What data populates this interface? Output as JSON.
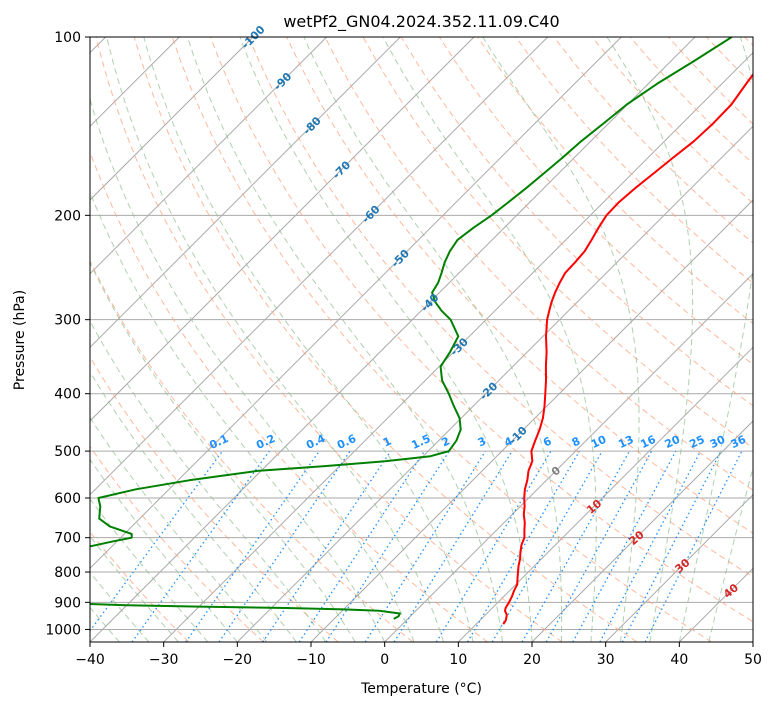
{
  "chart_data": {
    "type": "line",
    "title": "wetPf2_GN04.2024.352.11.09.C40",
    "xlabel": "Temperature (°C)",
    "ylabel": "Pressure (hPa)",
    "xlim": [
      -40,
      50
    ],
    "ylim": [
      1050,
      100
    ],
    "y_scale": "log",
    "grid": true,
    "x_ticks": [
      -40,
      -30,
      -20,
      -10,
      0,
      10,
      20,
      30,
      40,
      50
    ],
    "x_tick_labels": [
      "−40",
      "−30",
      "−20",
      "−10",
      "0",
      "10",
      "20",
      "30",
      "40",
      "50"
    ],
    "y_ticks": [
      100,
      200,
      300,
      400,
      500,
      600,
      700,
      800,
      900,
      1000
    ],
    "y_tick_labels": [
      "100",
      "200",
      "300",
      "400",
      "500",
      "600",
      "700",
      "800",
      "900",
      "1000"
    ],
    "series": [
      {
        "color": "#ff0000",
        "points": [
          [
            100,
            -28.3
          ],
          [
            110,
            -27.5
          ],
          [
            120,
            -26.7
          ],
          [
            130,
            -25.9
          ],
          [
            140,
            -25.8
          ],
          [
            150,
            -26.0
          ],
          [
            160,
            -26.6
          ],
          [
            170,
            -27.1
          ],
          [
            180,
            -27.6
          ],
          [
            190,
            -27.9
          ],
          [
            200,
            -27.8
          ],
          [
            210,
            -27.2
          ],
          [
            220,
            -26.5
          ],
          [
            230,
            -25.9
          ],
          [
            240,
            -25.7
          ],
          [
            250,
            -25.6
          ],
          [
            260,
            -25.0
          ],
          [
            270,
            -24.3
          ],
          [
            280,
            -23.5
          ],
          [
            290,
            -22.6
          ],
          [
            300,
            -21.7
          ],
          [
            320,
            -19.6
          ],
          [
            340,
            -17.4
          ],
          [
            360,
            -15.5
          ],
          [
            380,
            -13.6
          ],
          [
            400,
            -11.9
          ],
          [
            420,
            -10.3
          ],
          [
            440,
            -8.9
          ],
          [
            460,
            -7.8
          ],
          [
            480,
            -6.9
          ],
          [
            500,
            -6.0
          ],
          [
            520,
            -4.5
          ],
          [
            540,
            -3.7
          ],
          [
            560,
            -2.6
          ],
          [
            580,
            -1.7
          ],
          [
            600,
            -0.6
          ],
          [
            620,
            0.6
          ],
          [
            640,
            1.6
          ],
          [
            660,
            2.8
          ],
          [
            680,
            3.8
          ],
          [
            700,
            4.8
          ],
          [
            720,
            5.4
          ],
          [
            740,
            6.2
          ],
          [
            760,
            7.1
          ],
          [
            780,
            7.8
          ],
          [
            800,
            8.6
          ],
          [
            820,
            9.4
          ],
          [
            840,
            10.2
          ],
          [
            860,
            10.6
          ],
          [
            880,
            11.1
          ],
          [
            900,
            11.5
          ],
          [
            920,
            11.8
          ],
          [
            930,
            12.1
          ],
          [
            945,
            12.9
          ],
          [
            965,
            13.5
          ],
          [
            980,
            13.7
          ]
        ]
      },
      {
        "color": "#008000",
        "points": [
          [
            100,
            -35.0
          ],
          [
            110,
            -36.9
          ],
          [
            120,
            -38.8
          ],
          [
            130,
            -40.1
          ],
          [
            140,
            -40.7
          ],
          [
            150,
            -41.3
          ],
          [
            160,
            -41.6
          ],
          [
            170,
            -42.0
          ],
          [
            180,
            -42.4
          ],
          [
            190,
            -42.9
          ],
          [
            200,
            -43.4
          ],
          [
            210,
            -44.2
          ],
          [
            220,
            -44.7
          ],
          [
            230,
            -44.2
          ],
          [
            240,
            -43.4
          ],
          [
            250,
            -42.4
          ],
          [
            260,
            -41.5
          ],
          [
            270,
            -41.0
          ],
          [
            280,
            -39.3
          ],
          [
            290,
            -37.2
          ],
          [
            300,
            -34.8
          ],
          [
            320,
            -31.5
          ],
          [
            340,
            -30.5
          ],
          [
            360,
            -29.8
          ],
          [
            380,
            -27.7
          ],
          [
            400,
            -25.0
          ],
          [
            420,
            -22.6
          ],
          [
            440,
            -20.2
          ],
          [
            460,
            -18.5
          ],
          [
            480,
            -17.6
          ],
          [
            500,
            -17.2
          ],
          [
            510,
            -19.0
          ],
          [
            520,
            -24.5
          ],
          [
            530,
            -32.0
          ],
          [
            540,
            -40.5
          ],
          [
            560,
            -48.5
          ],
          [
            580,
            -54.5
          ],
          [
            600,
            -58.4
          ],
          [
            620,
            -57.0
          ],
          [
            650,
            -55.5
          ],
          [
            670,
            -53.0
          ],
          [
            690,
            -49.0
          ],
          [
            700,
            -48.5
          ],
          [
            710,
            -50.5
          ],
          [
            730,
            -54.0
          ],
          [
            750,
            -54.5
          ],
          [
            770,
            -53.5
          ],
          [
            790,
            -51.5
          ],
          [
            810,
            -50.5
          ],
          [
            830,
            -51.5
          ],
          [
            850,
            -52.5
          ],
          [
            870,
            -51.0
          ],
          [
            890,
            -49.0
          ],
          [
            905,
            -46.0
          ],
          [
            910,
            -40.0
          ],
          [
            915,
            -30.0
          ],
          [
            920,
            -18.0
          ],
          [
            925,
            -10.0
          ],
          [
            930,
            -5.0
          ],
          [
            940,
            -1.8
          ],
          [
            950,
            -1.6
          ],
          [
            960,
            -1.9
          ]
        ]
      }
    ],
    "dry_adiabats_C": [
      -30,
      -20,
      -10,
      0,
      10,
      20,
      30,
      40,
      50,
      60,
      70,
      80,
      90,
      100,
      110,
      120,
      130,
      140,
      150,
      160,
      170,
      180,
      190,
      200,
      210,
      220,
      230,
      240
    ],
    "isotherm_labels": [
      "-100",
      "-90",
      "-80",
      "-70",
      "-60",
      "-50",
      "-40",
      "-30",
      "-20",
      "-10"
    ],
    "mixing_ratio_labels": [
      "0.1",
      "0.2",
      "0.4",
      "0.6",
      "1",
      "1.5",
      "2",
      "3",
      "4",
      "6",
      "8",
      "10",
      "13",
      "16",
      "20",
      "25",
      "30",
      "36"
    ],
    "moist_adiabat_labels": [
      "0",
      "10",
      "20",
      "30",
      "40"
    ],
    "colors": {
      "temperature": "#ff0000",
      "dewpoint": "#008000",
      "isotherm_label": "#1f77b4",
      "mixing_ratio": "#1e90ff",
      "moist_label": "#d62728",
      "dry_adiabat": "#ffa07a",
      "moist_adiabat": "#8fbc8f",
      "grid": "#aaaaaa"
    }
  }
}
